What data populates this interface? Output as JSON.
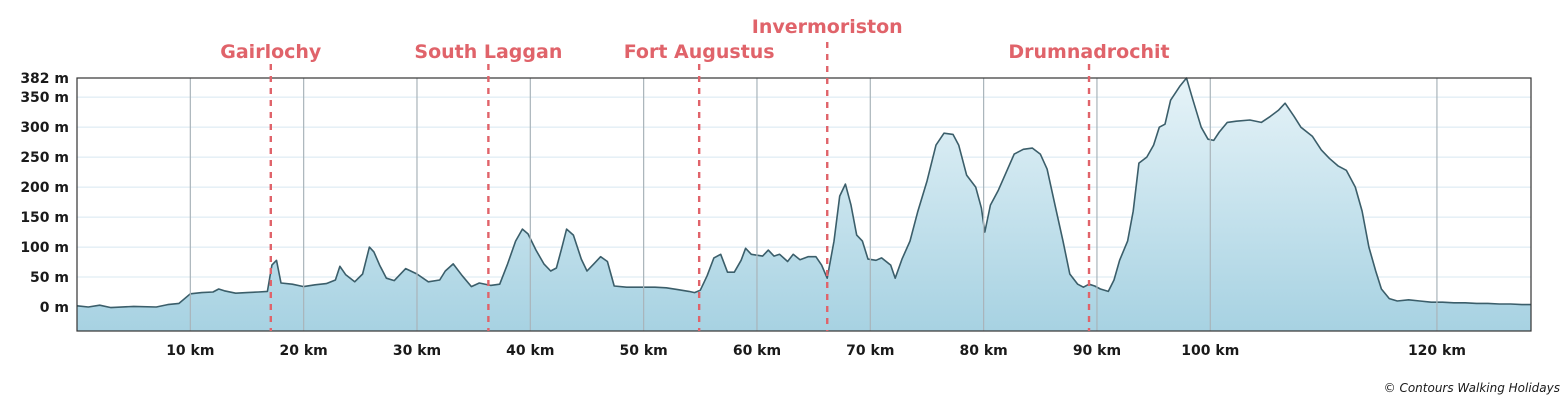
{
  "chart_data": {
    "type": "area",
    "x_unit": "km",
    "y_unit": "m",
    "xlim": [
      0,
      128.3
    ],
    "ylim": [
      -40,
      382
    ],
    "y_ticks": [
      {
        "value": 382,
        "label": "382 m"
      },
      {
        "value": 350,
        "label": "350 m"
      },
      {
        "value": 300,
        "label": "300 m"
      },
      {
        "value": 250,
        "label": "250 m"
      },
      {
        "value": 200,
        "label": "200 m"
      },
      {
        "value": 150,
        "label": "150 m"
      },
      {
        "value": 100,
        "label": "100 m"
      },
      {
        "value": 50,
        "label": "50 m"
      },
      {
        "value": 0,
        "label": "0 m"
      }
    ],
    "x_ticks": [
      {
        "value": 10,
        "label": "10 km"
      },
      {
        "value": 20,
        "label": "20 km"
      },
      {
        "value": 30,
        "label": "30 km"
      },
      {
        "value": 40,
        "label": "40 km"
      },
      {
        "value": 50,
        "label": "50 km"
      },
      {
        "value": 60,
        "label": "60 km"
      },
      {
        "value": 70,
        "label": "70 km"
      },
      {
        "value": 80,
        "label": "80 km"
      },
      {
        "value": 90,
        "label": "90 km"
      },
      {
        "value": 100,
        "label": "100 km"
      },
      {
        "value": 120,
        "label": "120 km"
      }
    ],
    "markers": [
      {
        "label": "Gairlochy",
        "x": 17.1
      },
      {
        "label": "South Laggan",
        "x": 36.3
      },
      {
        "label": "Fort Augustus",
        "x": 54.9
      },
      {
        "label": "Invermoriston",
        "x": 66.2
      },
      {
        "label": "Drumnadrochit",
        "x": 89.3
      }
    ],
    "series": [
      {
        "points": [
          [
            0,
            2
          ],
          [
            1,
            0
          ],
          [
            2,
            3
          ],
          [
            3,
            -1
          ],
          [
            5,
            1
          ],
          [
            7,
            0
          ],
          [
            8,
            4
          ],
          [
            9,
            6
          ],
          [
            10,
            22
          ],
          [
            11,
            24
          ],
          [
            12,
            25
          ],
          [
            12.5,
            30
          ],
          [
            13,
            27
          ],
          [
            14,
            23
          ],
          [
            15,
            24
          ],
          [
            16,
            25
          ],
          [
            16.8,
            26
          ],
          [
            17.2,
            70
          ],
          [
            17.6,
            78
          ],
          [
            18,
            40
          ],
          [
            19,
            38
          ],
          [
            20,
            34
          ],
          [
            21,
            37
          ],
          [
            22,
            39
          ],
          [
            22.8,
            45
          ],
          [
            23.2,
            68
          ],
          [
            23.7,
            54
          ],
          [
            24.5,
            42
          ],
          [
            25.2,
            55
          ],
          [
            25.8,
            100
          ],
          [
            26.2,
            92
          ],
          [
            26.7,
            70
          ],
          [
            27.3,
            48
          ],
          [
            28,
            44
          ],
          [
            29,
            64
          ],
          [
            30,
            55
          ],
          [
            31,
            42
          ],
          [
            32,
            45
          ],
          [
            32.5,
            60
          ],
          [
            33.2,
            72
          ],
          [
            34,
            52
          ],
          [
            34.8,
            34
          ],
          [
            35.5,
            40
          ],
          [
            36.5,
            36
          ],
          [
            37.3,
            38
          ],
          [
            38,
            72
          ],
          [
            38.7,
            110
          ],
          [
            39.3,
            130
          ],
          [
            39.8,
            122
          ],
          [
            40.5,
            95
          ],
          [
            41.2,
            72
          ],
          [
            41.8,
            60
          ],
          [
            42.3,
            65
          ],
          [
            42.8,
            100
          ],
          [
            43.2,
            130
          ],
          [
            43.8,
            120
          ],
          [
            44.5,
            80
          ],
          [
            45,
            60
          ],
          [
            45.6,
            72
          ],
          [
            46.2,
            84
          ],
          [
            46.8,
            76
          ],
          [
            47.4,
            35
          ],
          [
            48.5,
            33
          ],
          [
            50,
            33
          ],
          [
            51,
            33
          ],
          [
            52,
            32
          ],
          [
            53,
            29
          ],
          [
            54,
            26
          ],
          [
            54.5,
            24
          ],
          [
            55,
            28
          ],
          [
            55.6,
            52
          ],
          [
            56.2,
            82
          ],
          [
            56.8,
            88
          ],
          [
            57.4,
            58
          ],
          [
            58,
            58
          ],
          [
            58.6,
            78
          ],
          [
            59,
            98
          ],
          [
            59.5,
            88
          ],
          [
            60.5,
            85
          ],
          [
            61,
            95
          ],
          [
            61.5,
            85
          ],
          [
            62,
            88
          ],
          [
            62.7,
            76
          ],
          [
            63.2,
            88
          ],
          [
            63.8,
            79
          ],
          [
            64.5,
            84
          ],
          [
            65.2,
            84
          ],
          [
            65.7,
            70
          ],
          [
            66.2,
            48
          ],
          [
            66.8,
            110
          ],
          [
            67.3,
            185
          ],
          [
            67.8,
            205
          ],
          [
            68.3,
            170
          ],
          [
            68.8,
            120
          ],
          [
            69.3,
            110
          ],
          [
            69.8,
            80
          ],
          [
            70.5,
            78
          ],
          [
            71,
            82
          ],
          [
            71.8,
            70
          ],
          [
            72.2,
            48
          ],
          [
            72.8,
            80
          ],
          [
            73.5,
            110
          ],
          [
            74.2,
            160
          ],
          [
            75,
            210
          ],
          [
            75.8,
            270
          ],
          [
            76.5,
            290
          ],
          [
            77.3,
            288
          ],
          [
            77.8,
            270
          ],
          [
            78.5,
            220
          ],
          [
            79.3,
            200
          ],
          [
            79.8,
            165
          ],
          [
            80.1,
            125
          ],
          [
            80.6,
            170
          ],
          [
            81.3,
            195
          ],
          [
            82,
            225
          ],
          [
            82.7,
            255
          ],
          [
            83.5,
            263
          ],
          [
            84.3,
            265
          ],
          [
            85,
            255
          ],
          [
            85.6,
            230
          ],
          [
            86.3,
            170
          ],
          [
            87,
            110
          ],
          [
            87.6,
            55
          ],
          [
            88.3,
            38
          ],
          [
            88.8,
            33
          ],
          [
            89.3,
            38
          ],
          [
            89.8,
            35
          ],
          [
            90.3,
            30
          ],
          [
            91,
            26
          ],
          [
            91.5,
            45
          ],
          [
            92,
            78
          ],
          [
            92.7,
            110
          ],
          [
            93.2,
            160
          ],
          [
            93.7,
            240
          ],
          [
            94.4,
            250
          ],
          [
            95,
            270
          ],
          [
            95.5,
            300
          ],
          [
            96,
            305
          ],
          [
            96.5,
            345
          ],
          [
            97.3,
            368
          ],
          [
            97.9,
            382
          ],
          [
            98.4,
            350
          ],
          [
            99.2,
            300
          ],
          [
            99.8,
            280
          ],
          [
            100.3,
            278
          ],
          [
            100.8,
            292
          ],
          [
            101.5,
            308
          ],
          [
            102.3,
            310
          ],
          [
            103.5,
            312
          ],
          [
            104.5,
            308
          ],
          [
            105.3,
            318
          ],
          [
            106,
            328
          ],
          [
            106.6,
            340
          ],
          [
            107.4,
            318
          ],
          [
            108,
            300
          ],
          [
            109,
            285
          ],
          [
            109.8,
            262
          ],
          [
            110.5,
            248
          ],
          [
            111.3,
            235
          ],
          [
            112,
            228
          ],
          [
            112.8,
            200
          ],
          [
            113.4,
            160
          ],
          [
            114,
            100
          ],
          [
            114.6,
            60
          ],
          [
            115.1,
            30
          ],
          [
            115.8,
            14
          ],
          [
            116.5,
            10
          ],
          [
            117.5,
            12
          ],
          [
            118.5,
            10
          ],
          [
            119.5,
            8
          ],
          [
            120.5,
            8
          ],
          [
            121.5,
            7
          ],
          [
            122.5,
            7
          ],
          [
            123.5,
            6
          ],
          [
            124.5,
            6
          ],
          [
            125.5,
            5
          ],
          [
            126.5,
            5
          ],
          [
            127.5,
            4
          ],
          [
            128.3,
            4
          ]
        ],
        "line_color": "#3b5e6a",
        "fill_top_color": "#e6f3f8",
        "fill_bottom_color": "#a7d2e2"
      }
    ],
    "grid": true,
    "marker_color": "#e0636a"
  },
  "copyright": "© Contours Walking Holidays"
}
